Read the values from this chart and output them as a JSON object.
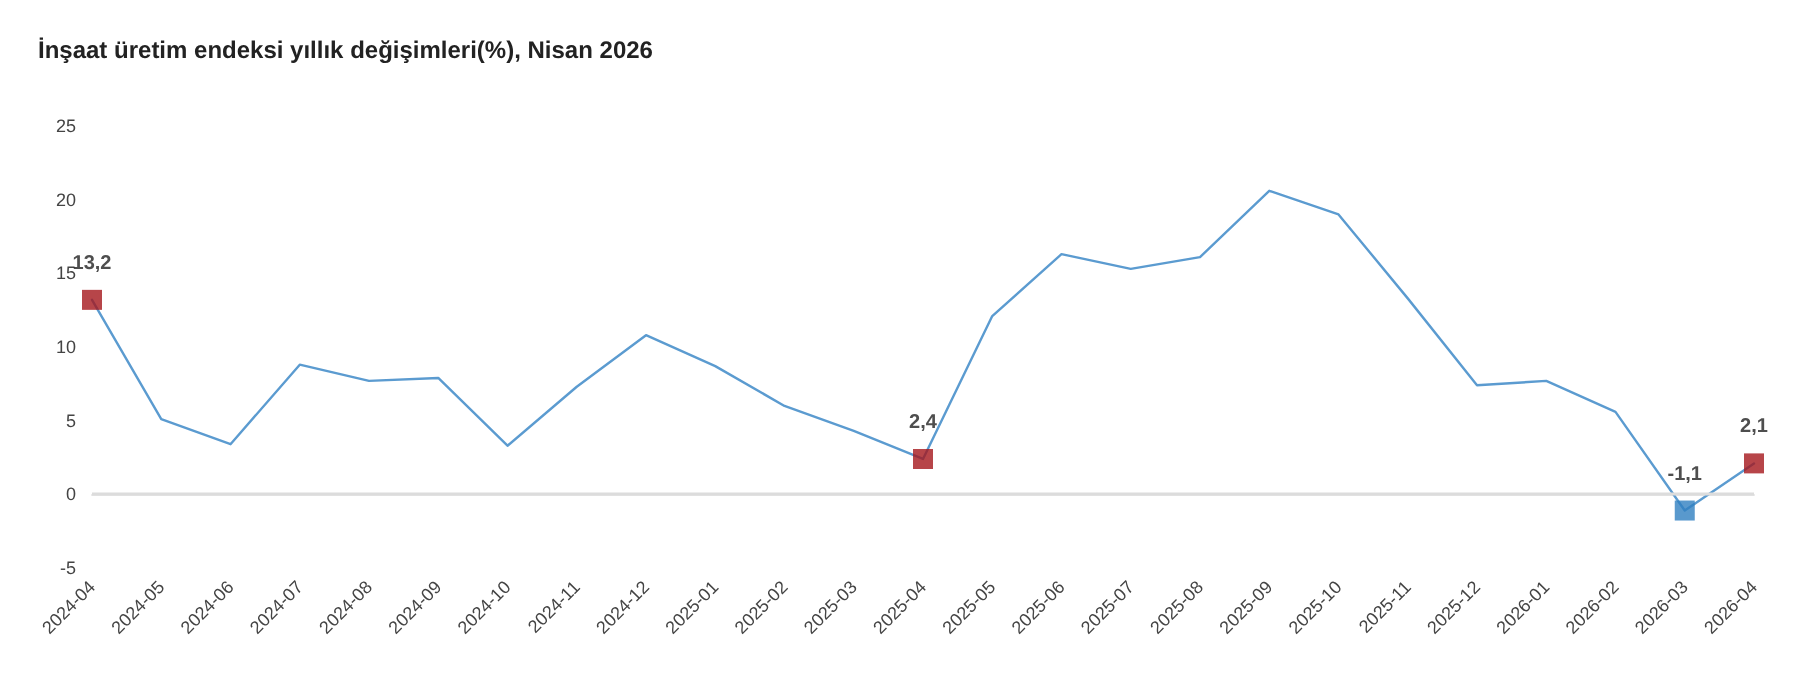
{
  "chart_data": {
    "type": "line",
    "title": "İnşaat üretim endeksi yıllık değişimleri(%), Nisan 2026",
    "categories": [
      "2024-04",
      "2024-05",
      "2024-06",
      "2024-07",
      "2024-08",
      "2024-09",
      "2024-10",
      "2024-11",
      "2024-12",
      "2025-01",
      "2025-02",
      "2025-03",
      "2025-04",
      "2025-05",
      "2025-06",
      "2025-07",
      "2025-08",
      "2025-09",
      "2025-10",
      "2025-11",
      "2025-12",
      "2026-01",
      "2026-02",
      "2026-03",
      "2026-04"
    ],
    "series": [
      {
        "color": "#5b9bd0",
        "marker": "none",
        "values": [
          13.2,
          5.1,
          3.4,
          8.8,
          7.7,
          7.9,
          3.3,
          7.3,
          10.8,
          8.7,
          6.0,
          4.3,
          2.4,
          12.1,
          16.3,
          15.3,
          16.1,
          20.6,
          19.0,
          13.3,
          7.4,
          7.7,
          5.6,
          -1.1,
          2.1
        ]
      },
      {
        "type": "scatter",
        "marker": "square",
        "values": [
          13.2,
          null,
          null,
          null,
          null,
          null,
          null,
          null,
          null,
          null,
          null,
          null,
          2.4,
          null,
          null,
          null,
          null,
          null,
          null,
          null,
          null,
          null,
          null,
          -1.1,
          2.1
        ],
        "colors": [
          "#a5161c",
          null,
          null,
          null,
          null,
          null,
          null,
          null,
          null,
          null,
          null,
          null,
          "#a5161c",
          null,
          null,
          null,
          null,
          null,
          null,
          null,
          null,
          null,
          null,
          "#2f7fc1",
          "#a5161c"
        ],
        "value_labels": [
          "13,2",
          null,
          null,
          null,
          null,
          null,
          null,
          null,
          null,
          null,
          null,
          null,
          "2,4",
          null,
          null,
          null,
          null,
          null,
          null,
          null,
          null,
          null,
          null,
          "-1,1",
          "2,1"
        ]
      }
    ],
    "ylim": [
      -5,
      25
    ],
    "yticks": [
      -5,
      0,
      5,
      10,
      15,
      20,
      25
    ],
    "grid": false,
    "ref_lines": [
      {
        "axis": "y",
        "value": 0,
        "color": "#dcdcdc"
      }
    ]
  }
}
